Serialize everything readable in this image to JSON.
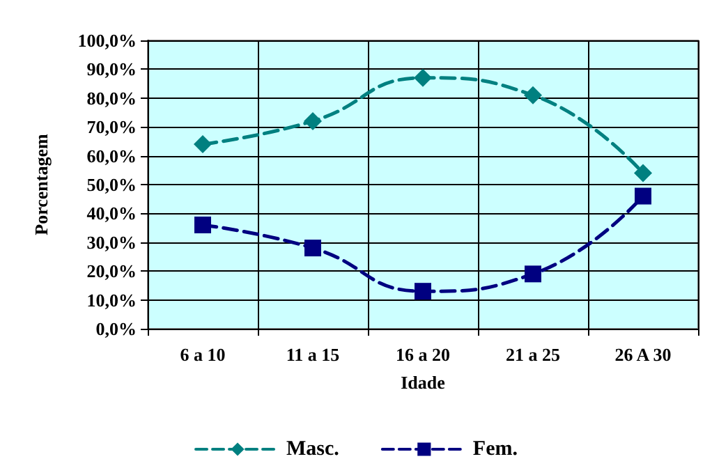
{
  "chart_data": {
    "type": "line",
    "xlabel": "Idade",
    "ylabel": "Porcentagem",
    "categories": [
      "6 a 10",
      "11 a 15",
      "16 a 20",
      "21 a 25",
      "26 A 30"
    ],
    "series": [
      {
        "name": "Masc.",
        "color": "#008080",
        "marker": "diamond",
        "values": [
          64,
          72,
          87,
          81,
          54
        ]
      },
      {
        "name": "Fem.",
        "color": "#000080",
        "marker": "square",
        "values": [
          36,
          28,
          13,
          19,
          46
        ]
      }
    ],
    "ylim": [
      0,
      100
    ],
    "yticks": [
      {
        "value": 0,
        "label": "0,0%"
      },
      {
        "value": 10,
        "label": "10,0%"
      },
      {
        "value": 20,
        "label": "20,0%"
      },
      {
        "value": 30,
        "label": "30,0%"
      },
      {
        "value": 40,
        "label": "40,0%"
      },
      {
        "value": 50,
        "label": "50,0%"
      },
      {
        "value": 60,
        "label": "60,0%"
      },
      {
        "value": 70,
        "label": "70,0%"
      },
      {
        "value": 80,
        "label": "80,0%"
      },
      {
        "value": 90,
        "label": "90,0%"
      },
      {
        "value": 100,
        "label": "100,0%"
      }
    ],
    "grid": true,
    "legend": "bottom",
    "line_style": "dashed"
  }
}
